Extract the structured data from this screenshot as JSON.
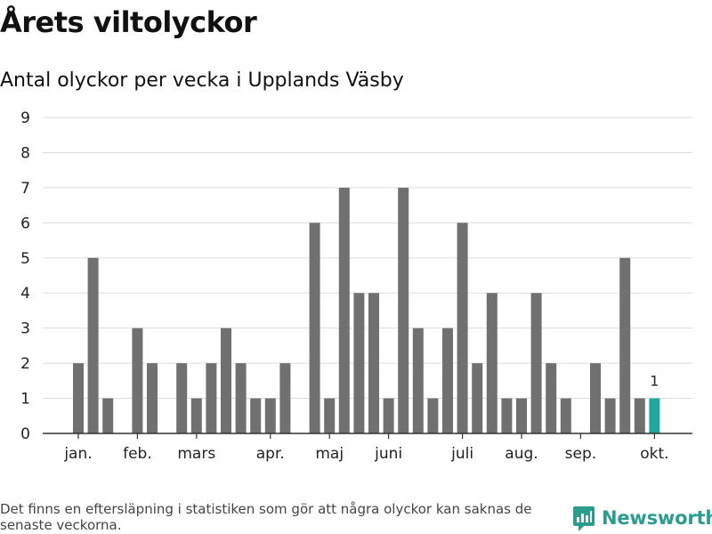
{
  "header": {
    "title": "Årets viltolyckor",
    "subtitle": "Antal olyckor per vecka i Upplands Väsby"
  },
  "footer": {
    "note": "Det finns en eftersläpning i statistiken som gör att några olyckor kan saknas de senaste veckorna.",
    "brand": "Newsworthy"
  },
  "colors": {
    "bar": "#707070",
    "highlight": "#1fa89b",
    "grid": "#dddddd",
    "axis": "#333333",
    "brand": "#2a9d8f"
  },
  "chart_data": {
    "type": "bar",
    "x": [
      "1",
      "2",
      "3",
      "4",
      "5",
      "6",
      "7",
      "8",
      "9",
      "10",
      "11",
      "12",
      "13",
      "14",
      "15",
      "16",
      "17",
      "18",
      "19",
      "20",
      "21",
      "22",
      "23",
      "24",
      "25",
      "26",
      "27",
      "28",
      "29",
      "30",
      "31",
      "32",
      "33",
      "34",
      "35",
      "36",
      "37",
      "38",
      "39",
      "40"
    ],
    "values": [
      2,
      5,
      1,
      0,
      3,
      2,
      0,
      2,
      1,
      2,
      3,
      2,
      1,
      1,
      2,
      0,
      6,
      1,
      7,
      4,
      4,
      1,
      7,
      3,
      1,
      3,
      6,
      2,
      4,
      1,
      1,
      4,
      2,
      1,
      0,
      2,
      1,
      5,
      1,
      1
    ],
    "highlight_index": 39,
    "highlight_label": "1",
    "ylim": [
      0,
      9
    ],
    "yticks": [
      "0",
      "1",
      "2",
      "3",
      "4",
      "5",
      "6",
      "7",
      "8",
      "9"
    ],
    "month_labels": [
      {
        "label": "jan.",
        "at": 1
      },
      {
        "label": "feb.",
        "at": 5
      },
      {
        "label": "mars",
        "at": 9
      },
      {
        "label": "apr.",
        "at": 14
      },
      {
        "label": "maj",
        "at": 18
      },
      {
        "label": "juni",
        "at": 22
      },
      {
        "label": "juli",
        "at": 27
      },
      {
        "label": "aug.",
        "at": 31
      },
      {
        "label": "sep.",
        "at": 35
      },
      {
        "label": "okt.",
        "at": 40
      }
    ],
    "grid": true,
    "xlabel": "",
    "ylabel": ""
  }
}
